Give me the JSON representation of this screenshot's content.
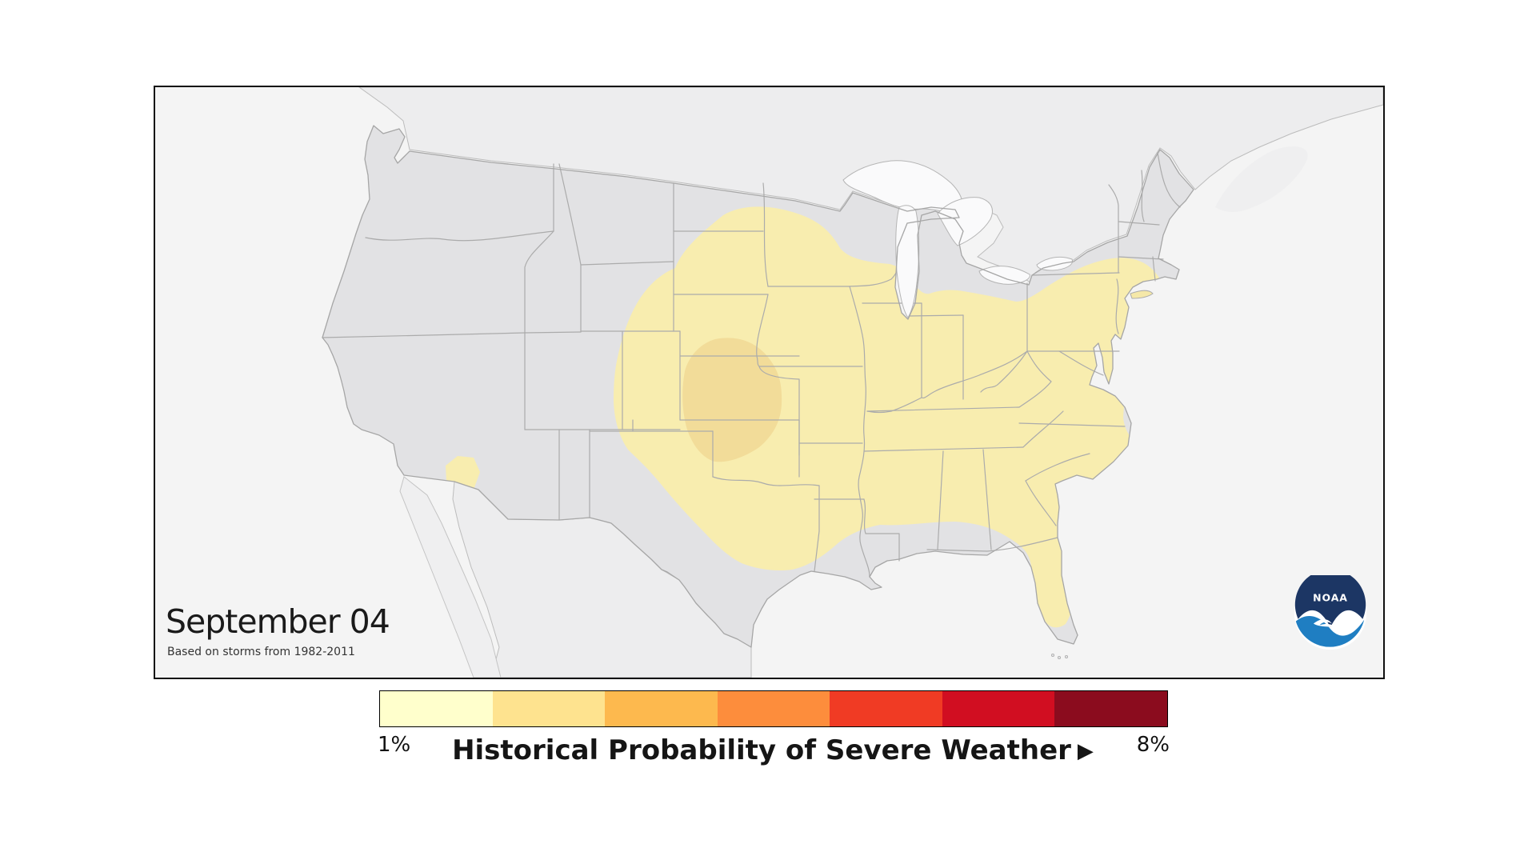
{
  "page": {
    "background": "#ffffff",
    "description": "NOAA historical probability of severe weather map for September 04"
  },
  "map": {
    "date_label": "September 04",
    "subtitle": "Based on storms from 1982-2011",
    "noaa_logo_text": "NOAA",
    "colors": {
      "ocean_background": "#f4f4f4",
      "foreign_land": "#ededee",
      "us_land": "#e2e2e4",
      "lakes": "#fafafb",
      "state_border": "#ababab",
      "coast_outline": "#a6a6a6",
      "prob_1pct_fill": "#f8edaf",
      "prob_2pct_fill": "#f2dc99",
      "frame_border": "#101010",
      "noaa_navy": "#1c3664",
      "noaa_blue": "#1f7ec2"
    },
    "regions": [
      {
        "level": "1%",
        "area": "Central and eastern US from the Dakotas and Texas east to the mid-Atlantic and Southeast, plus a small spot near Yuma AZ and north-central Florida"
      },
      {
        "level": "2%",
        "area": "Central High Plains: western Kansas, southwest Nebraska, eastern Colorado and Oklahoma panhandle region"
      }
    ]
  },
  "legend": {
    "min_label": "1%",
    "max_label": "8%",
    "title": "Historical Probability of Severe Weather",
    "next_arrow": "▶",
    "colors": [
      "#ffffcc",
      "#fee38f",
      "#fdb94e",
      "#fd8d3c",
      "#f03b24",
      "#d10e21",
      "#8b0c1e"
    ]
  },
  "map_data": {
    "type": "filled contour map (choropleth of severe weather climatology)",
    "value_range_percent": [
      1,
      8
    ],
    "contour_levels_shown_percent": [
      1,
      2
    ],
    "date_shown": "September 04",
    "source_period": "1982-2011"
  }
}
